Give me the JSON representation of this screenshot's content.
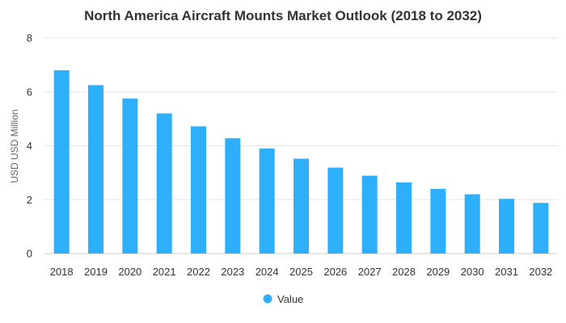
{
  "chart_data": {
    "type": "bar",
    "title": "North America Aircraft Mounts Market Outlook (2018 to 2032)",
    "xlabel": "",
    "ylabel": "USD USD Million",
    "ylim": [
      0,
      8
    ],
    "yticks": [
      0,
      2,
      4,
      6,
      8
    ],
    "grid": true,
    "legend_position": "bottom-center",
    "categories": [
      "2018",
      "2019",
      "2020",
      "2021",
      "2022",
      "2023",
      "2024",
      "2025",
      "2026",
      "2027",
      "2028",
      "2029",
      "2030",
      "2031",
      "2032"
    ],
    "series": [
      {
        "name": "Value",
        "color": "#2eaffc",
        "values": [
          6.8,
          6.25,
          5.75,
          5.2,
          4.72,
          4.28,
          3.9,
          3.52,
          3.19,
          2.89,
          2.64,
          2.4,
          2.2,
          2.03,
          1.88
        ]
      }
    ]
  }
}
